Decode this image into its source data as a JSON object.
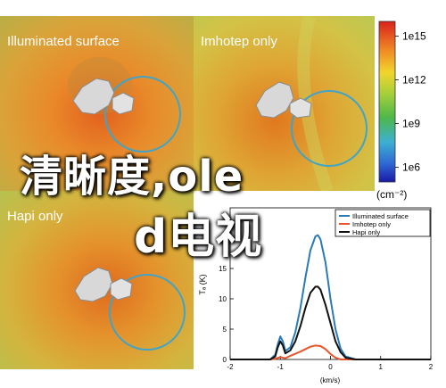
{
  "panels": [
    {
      "title": "Illuminated surface"
    },
    {
      "title": "Imhotep only"
    },
    {
      "title": "Hapi only"
    }
  ],
  "overlay_text": {
    "line1": "清晰度,ole",
    "line2": "d电视"
  },
  "colors": {
    "circle": "#3fa4c9",
    "illuminated": "#2a7ab8",
    "imhotep": "#e8552d",
    "hapi": "#111111"
  },
  "chart_data": [
    {
      "type": "heatmap",
      "colorbar": {
        "label": "(cm⁻²)",
        "scale": "log",
        "ticks": [
          "1e15",
          "1e12",
          "1e9",
          "1e6"
        ],
        "range": [
          100000.0,
          1e+16
        ]
      }
    },
    {
      "type": "line",
      "xlabel": "(km/s)",
      "ylabel": "Tₐ (K)",
      "xlim": [
        -2,
        2
      ],
      "ylim": [
        0,
        25
      ],
      "xticks": [
        -2,
        -1,
        0,
        1,
        2
      ],
      "yticks": [
        0,
        5,
        10,
        15,
        20
      ],
      "legend_position": "top-right",
      "series": [
        {
          "name": "Illuminated surface",
          "x": [
            -2,
            -1.2,
            -1.1,
            -1.05,
            -1.0,
            -0.95,
            -0.9,
            -0.8,
            -0.7,
            -0.6,
            -0.5,
            -0.4,
            -0.3,
            -0.25,
            -0.2,
            -0.1,
            0,
            0.1,
            0.2,
            0.3,
            0.5,
            0.7,
            2
          ],
          "y": [
            0,
            0,
            0.8,
            2.5,
            3.8,
            3.0,
            1.4,
            2.0,
            4.5,
            8.5,
            13.5,
            18,
            20.3,
            20.5,
            19.8,
            16,
            10,
            5,
            1.8,
            0.5,
            0,
            0,
            0
          ]
        },
        {
          "name": "Imhotep only",
          "x": [
            -2,
            -1.2,
            -1.1,
            -1.0,
            -0.9,
            -0.8,
            -0.6,
            -0.4,
            -0.3,
            -0.2,
            -0.1,
            0,
            0.1,
            0.2,
            2
          ],
          "y": [
            0,
            0,
            0.1,
            0.4,
            0.2,
            0.6,
            1.3,
            2.1,
            2.3,
            2.2,
            1.7,
            0.9,
            0.3,
            0,
            0
          ]
        },
        {
          "name": "Hapi only",
          "x": [
            -2,
            -1.2,
            -1.1,
            -1.05,
            -1.0,
            -0.95,
            -0.9,
            -0.8,
            -0.7,
            -0.6,
            -0.5,
            -0.4,
            -0.3,
            -0.25,
            -0.2,
            -0.1,
            0,
            0.1,
            0.2,
            0.3,
            0.5,
            2
          ],
          "y": [
            0,
            0,
            0.5,
            2.0,
            3.0,
            2.3,
            1.0,
            1.5,
            3.0,
            5.5,
            8.5,
            11,
            12,
            12,
            11.5,
            9,
            6,
            3,
            1.2,
            0.3,
            0,
            0
          ]
        }
      ]
    }
  ]
}
